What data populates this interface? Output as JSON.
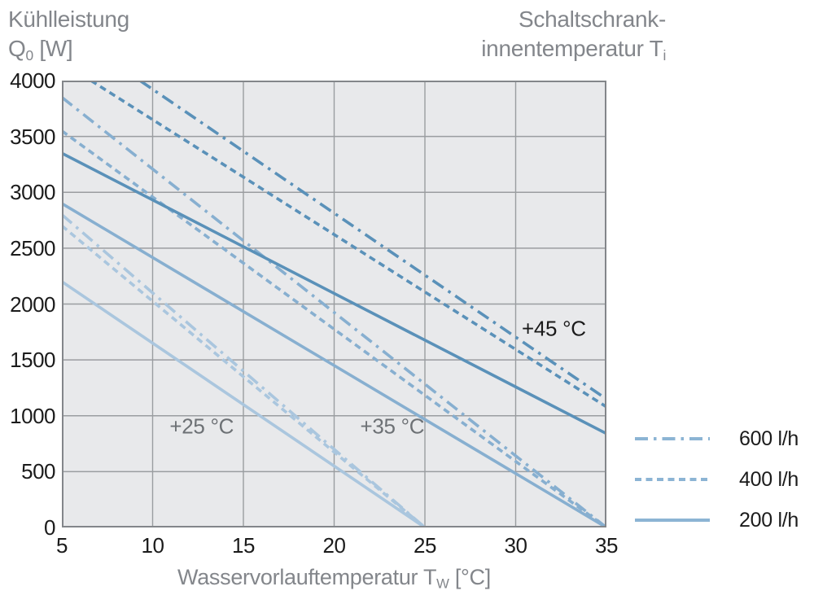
{
  "titles": {
    "y_axis": {
      "line1": "Kühlleistung",
      "symbol": "Q",
      "symbol_sub": "0",
      "unit": " [W]"
    },
    "right": {
      "line1": "Schaltschrank-",
      "line2": "innentemperatur T",
      "line2_sub": "i"
    },
    "x_axis": {
      "text": "Wasservorlauftemperatur T",
      "sub": "W",
      "unit": " [°C]"
    }
  },
  "chart_data": {
    "type": "line",
    "title": "",
    "xlabel": "Wasservorlauftemperatur TW [°C]",
    "ylabel": "Kühlleistung Q0 [W]",
    "xlim": [
      5,
      35
    ],
    "ylim": [
      0,
      4000
    ],
    "x_ticks": [
      5,
      10,
      15,
      20,
      25,
      30,
      35
    ],
    "y_ticks": [
      0,
      500,
      1000,
      1500,
      2000,
      2500,
      3000,
      3500,
      4000
    ],
    "grid": true,
    "legend_position": "right-bottom",
    "colors": {
      "ti_45": "#5a91b9",
      "ti_35": "#87afd0",
      "ti_25": "#aac6de",
      "plot_bg": "#e8e9eb",
      "grid": "#9a9da0",
      "border": "#83868a",
      "legend_line": "#8cb4d4"
    },
    "series": [
      {
        "name": "Ti +25 °C, 600 l/h",
        "ti": "+25 °C",
        "flow": "600 l/h",
        "style": "dashdot",
        "color_key": "ti_25",
        "points": [
          [
            5,
            2800
          ],
          [
            25,
            0
          ]
        ]
      },
      {
        "name": "Ti +25 °C, 400 l/h",
        "ti": "+25 °C",
        "flow": "400 l/h",
        "style": "dashed",
        "color_key": "ti_25",
        "points": [
          [
            5,
            2700
          ],
          [
            25,
            0
          ]
        ]
      },
      {
        "name": "Ti +25 °C, 200 l/h",
        "ti": "+25 °C",
        "flow": "200 l/h",
        "style": "solid",
        "color_key": "ti_25",
        "points": [
          [
            5,
            2200
          ],
          [
            25,
            0
          ]
        ]
      },
      {
        "name": "Ti +35 °C, 600 l/h",
        "ti": "+35 °C",
        "flow": "600 l/h",
        "style": "dashdot",
        "color_key": "ti_35",
        "points": [
          [
            5,
            3850
          ],
          [
            35,
            0
          ]
        ]
      },
      {
        "name": "Ti +35 °C, 400 l/h",
        "ti": "+35 °C",
        "flow": "400 l/h",
        "style": "dashed",
        "color_key": "ti_35",
        "points": [
          [
            5,
            3550
          ],
          [
            35,
            0
          ]
        ]
      },
      {
        "name": "Ti +35 °C, 200 l/h",
        "ti": "+35 °C",
        "flow": "200 l/h",
        "style": "solid",
        "color_key": "ti_35",
        "points": [
          [
            5,
            2900
          ],
          [
            35,
            0
          ]
        ]
      },
      {
        "name": "Ti +45 °C, 600 l/h",
        "ti": "+45 °C",
        "flow": "600 l/h",
        "style": "dashdot",
        "color_key": "ti_45",
        "points": [
          [
            9.3,
            4000
          ],
          [
            35,
            1150
          ]
        ]
      },
      {
        "name": "Ti +45 °C, 400 l/h",
        "ti": "+45 °C",
        "flow": "400 l/h",
        "style": "dashed",
        "color_key": "ti_45",
        "points": [
          [
            6.6,
            4000
          ],
          [
            35,
            1080
          ]
        ]
      },
      {
        "name": "Ti +45 °C, 200 l/h",
        "ti": "+45 °C",
        "flow": "200 l/h",
        "style": "solid",
        "color_key": "ti_45",
        "points": [
          [
            5,
            3350
          ],
          [
            35,
            840
          ]
        ]
      }
    ],
    "annotations": [
      {
        "text": "+45 °C",
        "x": 32.1,
        "y": 1780,
        "color": "#1a1a1a"
      },
      {
        "text": "+35 °C",
        "x": 23.2,
        "y": 900,
        "color": "#6d7175"
      },
      {
        "text": "+25 °C",
        "x": 12.7,
        "y": 900,
        "color": "#6d7175"
      }
    ]
  },
  "legend": {
    "items": [
      {
        "label": "600 l/h",
        "style": "dashdot"
      },
      {
        "label": "400 l/h",
        "style": "dashed"
      },
      {
        "label": "200 l/h",
        "style": "solid"
      }
    ]
  }
}
